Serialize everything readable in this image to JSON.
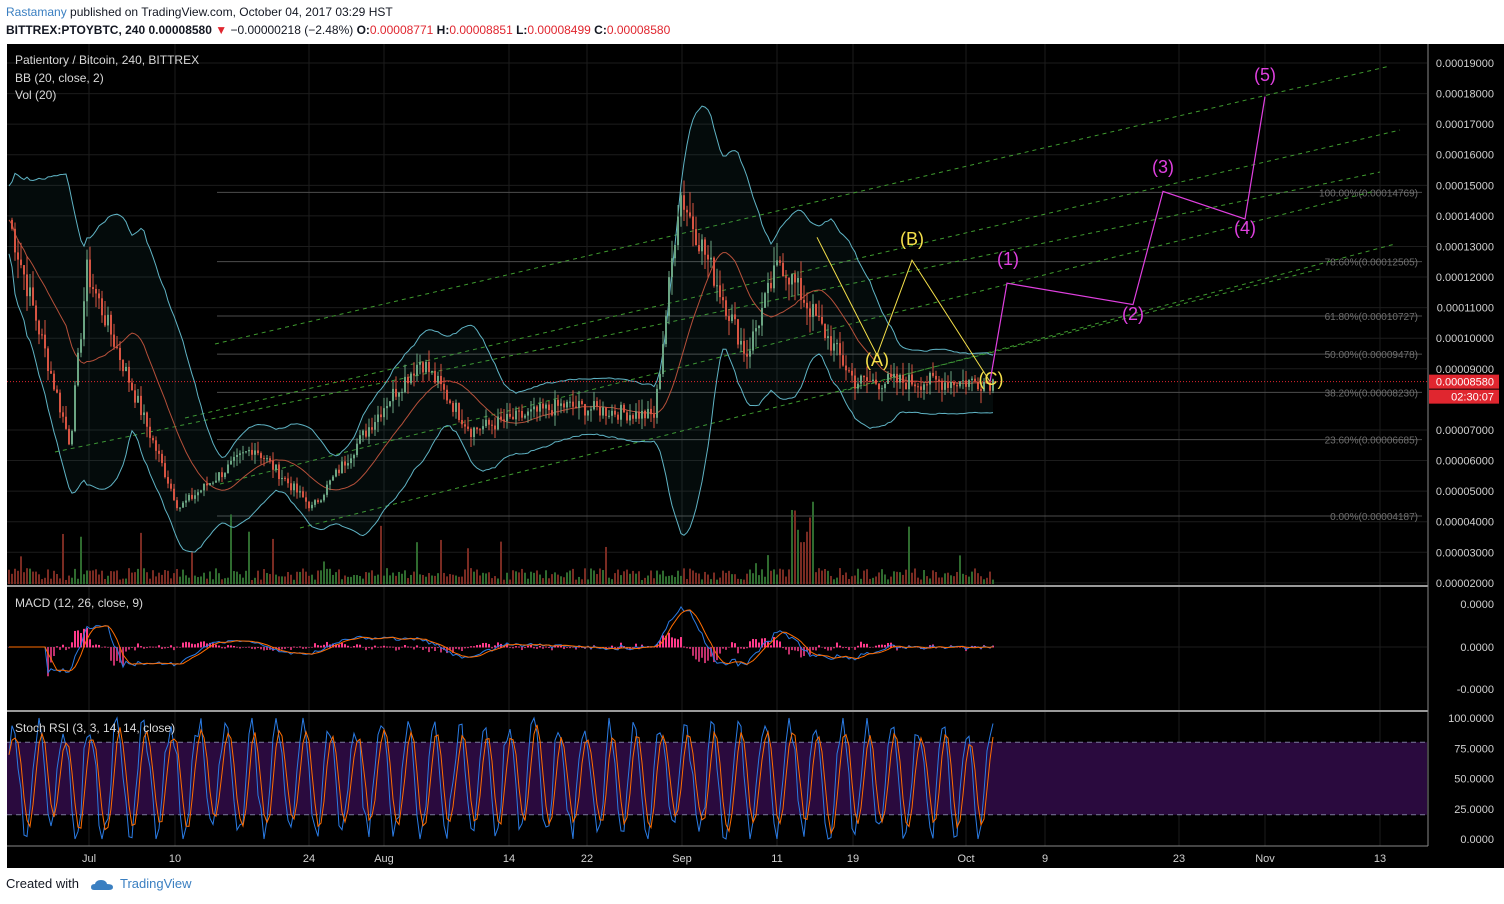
{
  "header": {
    "author": "Rastamany",
    "published": "published on TradingView.com, October 04, 2017 03:29 HST",
    "symbol": "BITTREX:PTOYBTC, 240",
    "last": "0.00008580",
    "change": "−0.00000218 (−2.48%)",
    "open_label": "O:",
    "open": "0.00008771",
    "high_label": "H:",
    "high": "0.00008851",
    "low_label": "L:",
    "low": "0.00008499",
    "close_label": "C:",
    "close": "0.00008580"
  },
  "panes": {
    "price_title": "Patientory / Bitcoin, 240, BITTREX",
    "bb_title": "BB (20, close, 2)",
    "vol_title": "Vol (20)",
    "macd_title": "MACD (12, 26, close, 9)",
    "stoch_title": "Stoch RSI (3, 3, 14, 14, close)"
  },
  "colors": {
    "background": "#000000",
    "grid": "#1c1c1c",
    "up": "#6ba583",
    "down": "#d75442",
    "bb_line": "#5fb3c4",
    "channel": "#3f9a2f",
    "wave_yellow": "#f5e04a",
    "wave_magenta": "#e040e0",
    "price_line": "#e0262f",
    "macd_line": "#2a7be4",
    "signal_line": "#ff6d00",
    "stoch_fill": "#2a0a3e"
  },
  "chart_data": [
    {
      "type": "candlestick",
      "title": "Patientory / Bitcoin, 240, BITTREX",
      "x_tick_labels": [
        "Jul",
        "10",
        "24",
        "Aug",
        "14",
        "22",
        "Sep",
        "11",
        "19",
        "Oct",
        "9",
        "23",
        "Nov",
        "13"
      ],
      "y_tick_labels": [
        "0.00019000",
        "0.00018000",
        "0.00017000",
        "0.00016000",
        "0.00015000",
        "0.00014000",
        "0.00013000",
        "0.00012000",
        "0.00011000",
        "0.00010000",
        "0.00009000",
        "0.00007000",
        "0.00006000",
        "0.00005000",
        "0.00004000",
        "0.00003000",
        "0.00002000"
      ],
      "ylim": [
        1.6e-05,
        0.000195
      ],
      "last_price_label": "0.00008580",
      "countdown_label": "02:30:07",
      "fib_levels": [
        {
          "label": "100.00%(0.00014769)",
          "value": 0.00014769
        },
        {
          "label": "78.60%(0.00012505)",
          "value": 0.00012505
        },
        {
          "label": "61.80%(0.00010727)",
          "value": 0.00010727
        },
        {
          "label": "50.00%(0.00009478)",
          "value": 9.478e-05
        },
        {
          "label": "38.20%(0.00008230)",
          "value": 8.23e-05
        },
        {
          "label": "23.60%(0.00006685)",
          "value": 6.685e-05
        },
        {
          "label": "0.00%(0.00004187)",
          "value": 4.187e-05
        }
      ],
      "elliott_abc": [
        {
          "label": "(A)",
          "y": 9.45e-05
        },
        {
          "label": "(B)",
          "y": 0.0001255
        },
        {
          "label": "(C)",
          "y": 8.58e-05
        }
      ],
      "elliott_12345": [
        {
          "label": "(1)",
          "y": 0.000118
        },
        {
          "label": "(2)",
          "y": 0.000111
        },
        {
          "label": "(3)",
          "y": 0.000148
        },
        {
          "label": "(4)",
          "y": 0.000139
        },
        {
          "label": "(5)",
          "y": 0.000179
        }
      ],
      "key_points": [
        {
          "x": "Jul 01",
          "y": 6.55e-05
        },
        {
          "x": "Jul 03",
          "y": 0.000122
        },
        {
          "x": "Jul 14",
          "y": 4.45e-05
        },
        {
          "x": "Jul 23",
          "y": 6.45e-05
        },
        {
          "x": "Jul 30",
          "y": 4.45e-05
        },
        {
          "x": "Aug 08",
          "y": 7.95e-05
        },
        {
          "x": "Aug 12",
          "y": 9.3e-05
        },
        {
          "x": "Aug 18",
          "y": 7e-05
        },
        {
          "x": "Aug 29",
          "y": 7.8e-05
        },
        {
          "x": "Sep 09",
          "y": 7.45e-05
        },
        {
          "x": "Sep 12",
          "y": 0.000148
        },
        {
          "x": "Sep 20",
          "y": 9.45e-05
        },
        {
          "x": "Sep 24",
          "y": 0.0001255
        },
        {
          "x": "Oct 03",
          "y": 8.58e-05
        }
      ]
    },
    {
      "type": "line",
      "title": "MACD (12, 26, close, 9)",
      "y_tick_labels": [
        "0.0000",
        "0.0000",
        "-0.0000"
      ]
    },
    {
      "type": "line",
      "title": "Stoch RSI (3, 3, 14, 14, close)",
      "y_tick_labels": [
        "100.0000",
        "75.0000",
        "50.0000",
        "25.0000",
        "0.0000"
      ],
      "bands": [
        20,
        80
      ],
      "ylim": [
        0,
        100
      ]
    }
  ],
  "footer": {
    "created_with": "Created with",
    "brand": "TradingView"
  }
}
